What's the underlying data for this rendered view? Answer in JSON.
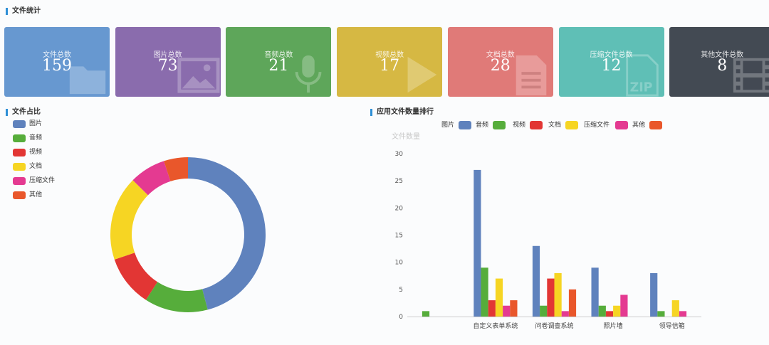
{
  "stats": {
    "title": "文件统计",
    "cards": [
      {
        "label": "文件总数",
        "value": "159",
        "color": "#6798d0",
        "icon": "folder-icon"
      },
      {
        "label": "图片总数",
        "value": "73",
        "color": "#8a6cad",
        "icon": "image-icon"
      },
      {
        "label": "音频总数",
        "value": "21",
        "color": "#5ea65a",
        "icon": "microphone-icon"
      },
      {
        "label": "视频总数",
        "value": "17",
        "color": "#d6b843",
        "icon": "play-icon"
      },
      {
        "label": "文档总数",
        "value": "28",
        "color": "#e07a78",
        "icon": "document-icon"
      },
      {
        "label": "压缩文件总数",
        "value": "12",
        "color": "#5fbfb6",
        "icon": "zip-file-icon"
      },
      {
        "label": "其他文件总数",
        "value": "8",
        "color": "#434a53",
        "icon": "film-icon"
      }
    ]
  },
  "pie": {
    "title": "文件占比"
  },
  "bar": {
    "title": "应用文件数量排行"
  },
  "chart_data": [
    {
      "type": "pie",
      "donut": true,
      "labels": [
        "图片",
        "音频",
        "视频",
        "文档",
        "压缩文件",
        "其他"
      ],
      "values": [
        73,
        21,
        17,
        28,
        12,
        8
      ],
      "colors": [
        "#5f82bd",
        "#56ad3b",
        "#e23634",
        "#f6d523",
        "#e43a91",
        "#e9572b"
      ],
      "legend_placement": "top-left"
    },
    {
      "type": "bar",
      "ylabel": "文件数量",
      "ylim": [
        0,
        30
      ],
      "yticks": [
        0,
        5,
        10,
        15,
        20,
        25,
        30
      ],
      "categories": [
        "",
        "自定义表单系统",
        "问卷调查系统",
        "照片墙",
        "领导信箱"
      ],
      "series": [
        {
          "name": "图片",
          "color": "#5f82bd",
          "values": [
            0,
            27,
            13,
            9,
            8
          ]
        },
        {
          "name": "音频",
          "color": "#56ad3b",
          "values": [
            1,
            9,
            2,
            2,
            1
          ]
        },
        {
          "name": "视频",
          "color": "#e23634",
          "values": [
            0,
            3,
            7,
            1,
            0
          ]
        },
        {
          "name": "文档",
          "color": "#f6d523",
          "values": [
            0,
            7,
            8,
            2,
            3
          ]
        },
        {
          "name": "压缩文件",
          "color": "#e43a91",
          "values": [
            0,
            2,
            1,
            4,
            1
          ]
        },
        {
          "name": "其他",
          "color": "#e9572b",
          "values": [
            0,
            3,
            5,
            0,
            0
          ]
        }
      ],
      "grid": false,
      "legend_placement": "top"
    }
  ]
}
